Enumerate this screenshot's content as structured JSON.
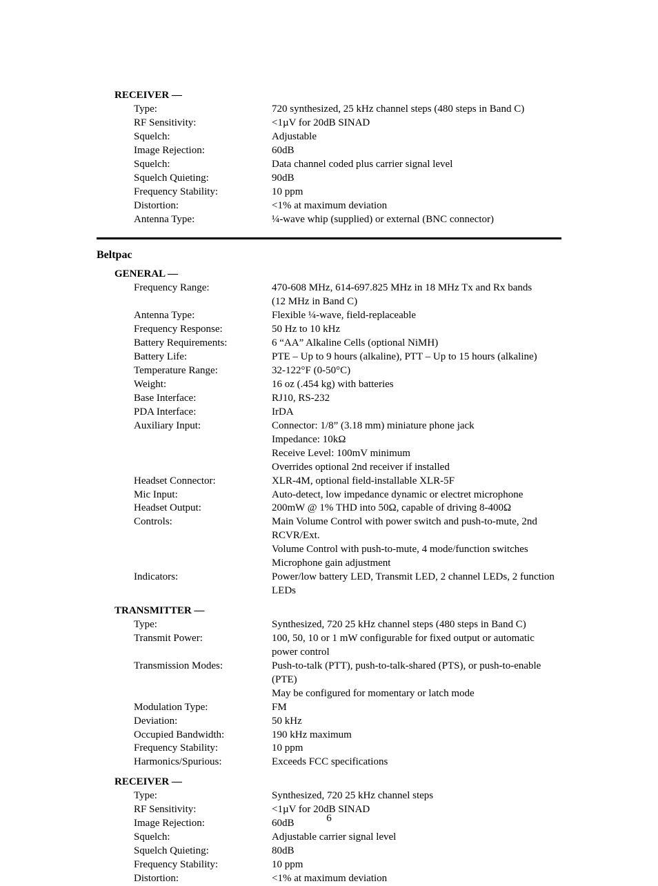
{
  "page_number": "6",
  "sections": [
    {
      "heading": "RECEIVER  —",
      "rows": [
        {
          "label": "Type:",
          "value": "720 synthesized, 25 kHz channel steps (480 steps in Band C)"
        },
        {
          "label": "RF Sensitivity:",
          "value": "<1µV for 20dB SINAD"
        },
        {
          "label": "Squelch:",
          "value": "Adjustable"
        },
        {
          "label": "Image Rejection:",
          "value": "60dB"
        },
        {
          "label": "Squelch:",
          "value": "Data channel coded plus carrier signal level"
        },
        {
          "label": "Squelch Quieting:",
          "value": "90dB"
        },
        {
          "label": "Frequency Stability:",
          "value": "10 ppm"
        },
        {
          "label": "Distortion:",
          "value": "<1% at maximum deviation"
        },
        {
          "label": "Antenna Type:",
          "value": "¼-wave whip (supplied) or external (BNC connector)"
        }
      ]
    }
  ],
  "group_title": "Beltpac",
  "beltpac": [
    {
      "heading": "GENERAL  —",
      "rows": [
        {
          "label": "Frequency Range:",
          "value": "470-608 MHz, 614-697.825 MHz in 18 MHz Tx and Rx bands"
        },
        {
          "label": "",
          "value": "(12 MHz in Band C)"
        },
        {
          "label": "Antenna Type:",
          "value": "Flexible ¼-wave, field-replaceable"
        },
        {
          "label": "Frequency Response:",
          "value": "50 Hz to 10 kHz"
        },
        {
          "label": "Battery Requirements:",
          "value": "6 “AA” Alkaline Cells (optional NiMH)"
        },
        {
          "label": "Battery Life:",
          "value": "PTE – Up to 9 hours (alkaline),  PTT – Up to 15 hours (alkaline)"
        },
        {
          "label": "Temperature Range:",
          "value": "32-122°F  (0-50°C)"
        },
        {
          "label": "Weight:",
          "value": "16 oz (.454 kg) with batteries"
        },
        {
          "label": "Base Interface:",
          "value": "RJ10, RS-232"
        },
        {
          "label": "PDA Interface:",
          "value": "IrDA"
        },
        {
          "label": "Auxiliary Input:",
          "value": "Connector:  1/8” (3.18 mm) miniature phone jack"
        },
        {
          "label": "",
          "value": "Impedance:  10kΩ"
        },
        {
          "label": "",
          "value": "Receive Level:  100mV minimum"
        },
        {
          "label": "",
          "value": "Overrides optional 2nd receiver if installed"
        },
        {
          "label": "Headset Connector:",
          "value": "XLR-4M, optional field-installable XLR-5F"
        },
        {
          "label": "Mic Input:",
          "value": "Auto-detect, low impedance dynamic or electret microphone"
        },
        {
          "label": "Headset Output:",
          "value": "200mW @ 1% THD into 50Ω, capable of driving 8-400Ω"
        },
        {
          "label": "Controls:",
          "value": "Main Volume Control with power switch and push-to-mute, 2nd RCVR/Ext."
        },
        {
          "label": "",
          "value": "Volume Control with push-to-mute, 4 mode/function switches"
        },
        {
          "label": "",
          "value": "Microphone gain adjustment"
        },
        {
          "label": "Indicators:",
          "value": "Power/low battery LED, Transmit LED, 2 channel LEDs, 2 function LEDs"
        }
      ]
    },
    {
      "heading": "TRANSMITTER  —",
      "rows": [
        {
          "label": "Type:",
          "value": "Synthesized, 720 25 kHz channel steps (480 steps in Band C)"
        },
        {
          "label": "Transmit Power:",
          "value": "100, 50, 10 or 1 mW configurable for fixed output or automatic power control"
        },
        {
          "label": "Transmission Modes:",
          "value": "Push-to-talk (PTT), push-to-talk-shared (PTS), or push-to-enable (PTE)"
        },
        {
          "label": "",
          "value": "May be configured for momentary or latch mode"
        },
        {
          "label": "Modulation Type:",
          "value": "FM"
        },
        {
          "label": "Deviation:",
          "value": "50 kHz"
        },
        {
          "label": "Occupied Bandwidth:",
          "value": "190 kHz maximum"
        },
        {
          "label": "Frequency Stability:",
          "value": "10 ppm"
        },
        {
          "label": "Harmonics/Spurious:",
          "value": "Exceeds FCC specifications"
        }
      ]
    },
    {
      "heading": "RECEIVER  —",
      "rows": [
        {
          "label": "Type:",
          "value": "Synthesized, 720 25 kHz channel steps"
        },
        {
          "label": "RF Sensitivity:",
          "value": "<1µV for 20dB SINAD"
        },
        {
          "label": "Image Rejection:",
          "value": "60dB"
        },
        {
          "label": "Squelch:",
          "value": "Adjustable carrier signal level"
        },
        {
          "label": "Squelch Quieting:",
          "value": "80dB"
        },
        {
          "label": "Frequency Stability:",
          "value": "10 ppm"
        },
        {
          "label": "Distortion:",
          "value": "<1% at maximum deviation"
        }
      ]
    }
  ]
}
